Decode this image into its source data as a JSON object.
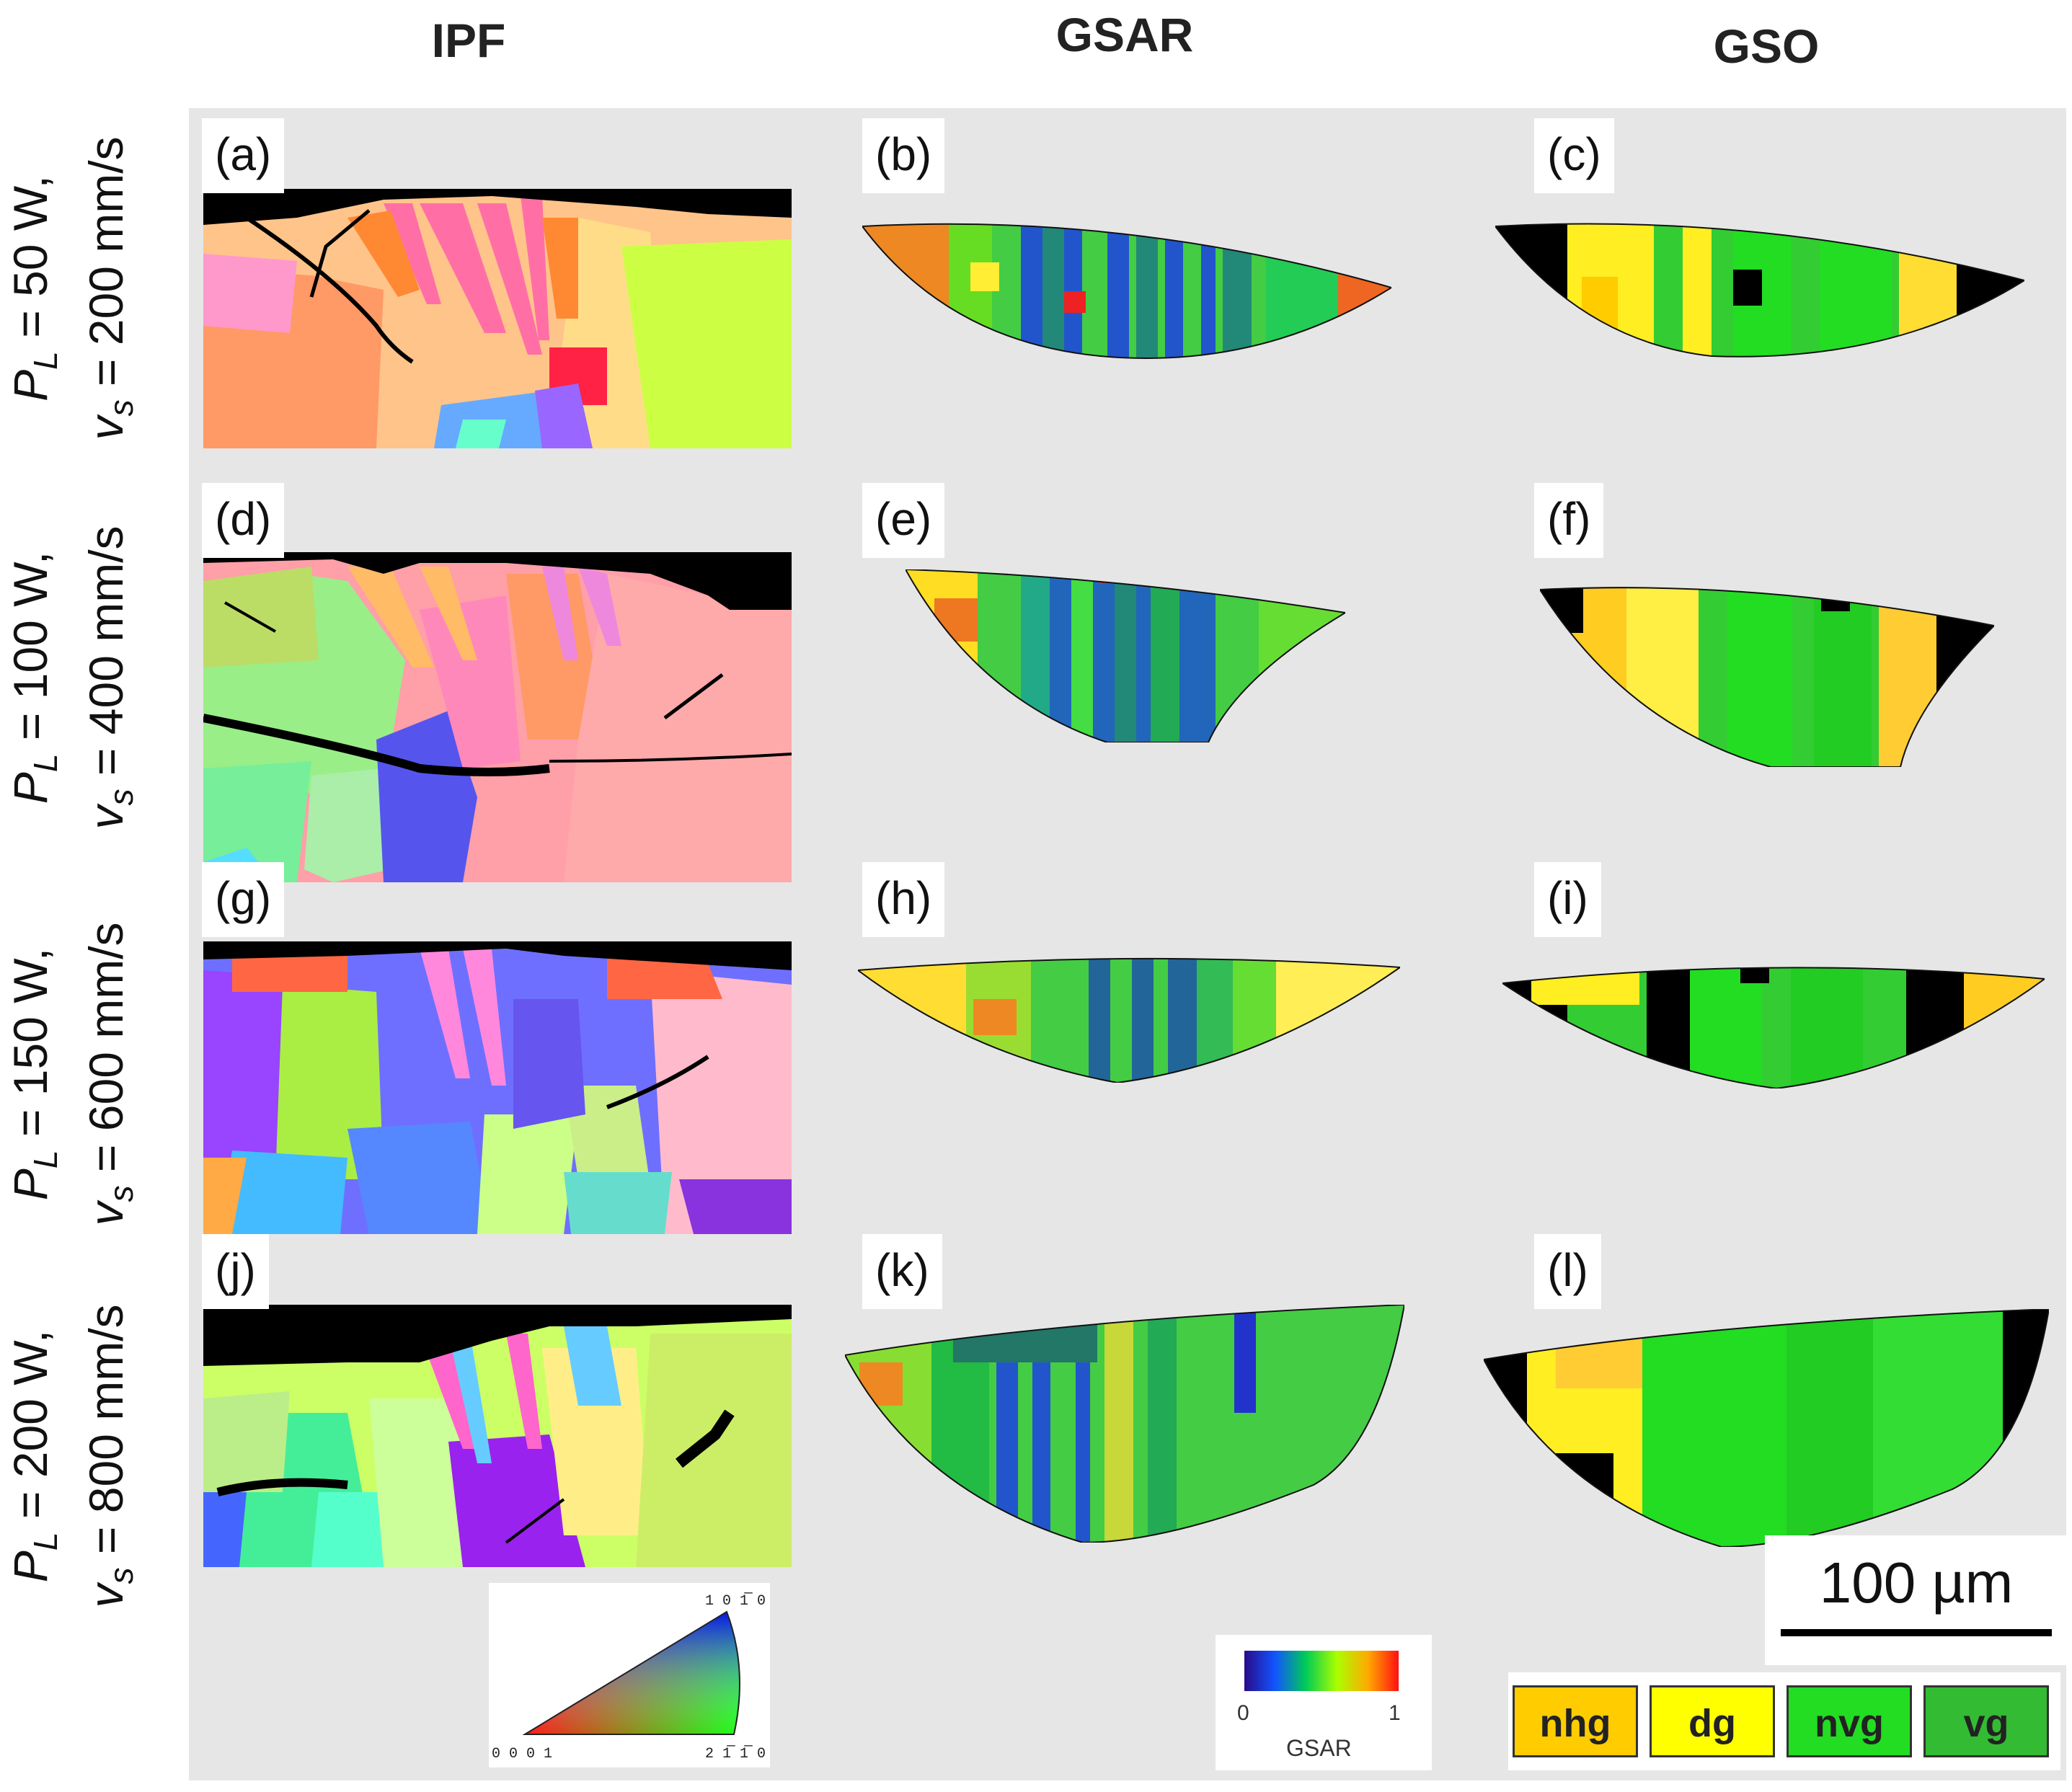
{
  "columns": {
    "ipf": "IPF",
    "gsar": "GSAR",
    "gso": "GSO"
  },
  "rows": [
    {
      "power": "50 W,",
      "speed": "200 mm/s"
    },
    {
      "power": "100 W,",
      "speed": "400 mm/s"
    },
    {
      "power": "150 W,",
      "speed": "600 mm/s"
    },
    {
      "power": "200 W,",
      "speed": "800 mm/s"
    }
  ],
  "row_symbols": {
    "p_main": "P",
    "p_sub": "L",
    "v_main": "v",
    "v_sub": "s",
    "eq": " = "
  },
  "panel_labels": [
    "(a)",
    "(b)",
    "(c)",
    "(d)",
    "(e)",
    "(f)",
    "(g)",
    "(h)",
    "(i)",
    "(j)",
    "(k)",
    "(l)"
  ],
  "ipf_legend": {
    "top": "1 0 1̅ 0",
    "bottom_left": "0 0 0 1",
    "bottom_right": "2 1̅ 1̅ 0"
  },
  "gsar_legend": {
    "min": "0",
    "max": "1",
    "label": "GSAR"
  },
  "scale_bar": {
    "label": "100 µm"
  },
  "gso_key": [
    {
      "label": "nhg",
      "color": "#ffcc00"
    },
    {
      "label": "dg",
      "color": "#ffff00"
    },
    {
      "label": "nvg",
      "color": "#22dd22"
    },
    {
      "label": "vg",
      "color": "#33bb33"
    }
  ]
}
